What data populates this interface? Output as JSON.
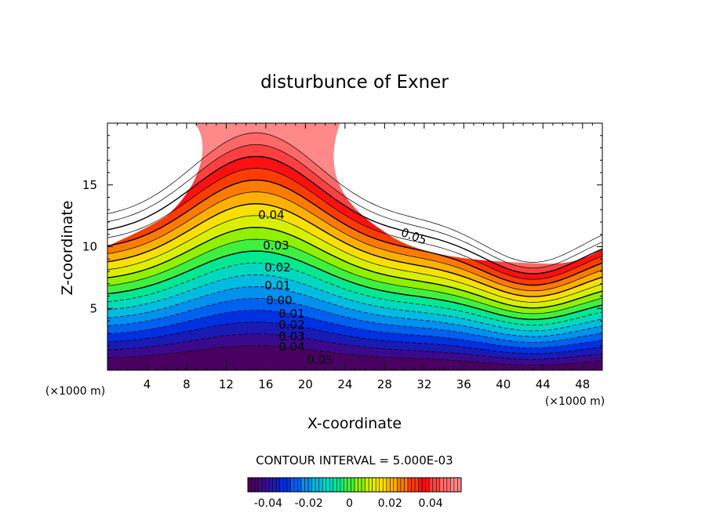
{
  "chart_data": {
    "type": "contour",
    "title": "disturbunce of Exner",
    "xlabel": "X-coordinate",
    "ylabel": "Z-coordinate",
    "x_unit": "(×1000 m)",
    "xlim": [
      0,
      50
    ],
    "ylim": [
      0,
      20
    ],
    "x_ticks": [
      4,
      8,
      12,
      16,
      20,
      24,
      28,
      32,
      36,
      40,
      44,
      48
    ],
    "y_ticks": [
      5,
      10,
      15
    ],
    "contour_interval_text": "CONTOUR INTERVAL = 5.000E-03",
    "levels": {
      "min": -0.05,
      "max": 0.055,
      "interval": 0.005,
      "negative_dashed": true
    },
    "contour_labels": [
      "0.05",
      "0.04",
      "0.03",
      "0.02",
      "0.01",
      "0.00",
      "0.01",
      "0.02",
      "0.03",
      "0.04",
      "0.05"
    ],
    "colorbar": {
      "range": [
        -0.05,
        0.055
      ],
      "tick_labels": [
        "-0.04",
        "-0.02",
        "0",
        "0.02",
        "0.04"
      ],
      "tick_values": [
        -0.04,
        -0.02,
        0,
        0.02,
        0.04
      ]
    },
    "colors": {
      "negative": [
        "#4a0060",
        "#3b0a8c",
        "#1a1ab4",
        "#0030e0",
        "#0060f0",
        "#0090f0",
        "#00bce0",
        "#00d8c0",
        "#00e890"
      ],
      "positive": [
        "#40f040",
        "#90f000",
        "#d8f000",
        "#f8e000",
        "#ffb000",
        "#ff7a00",
        "#ff3c00",
        "#ff1010",
        "#ff4040",
        "#ff6868",
        "#ff8888"
      ]
    }
  }
}
